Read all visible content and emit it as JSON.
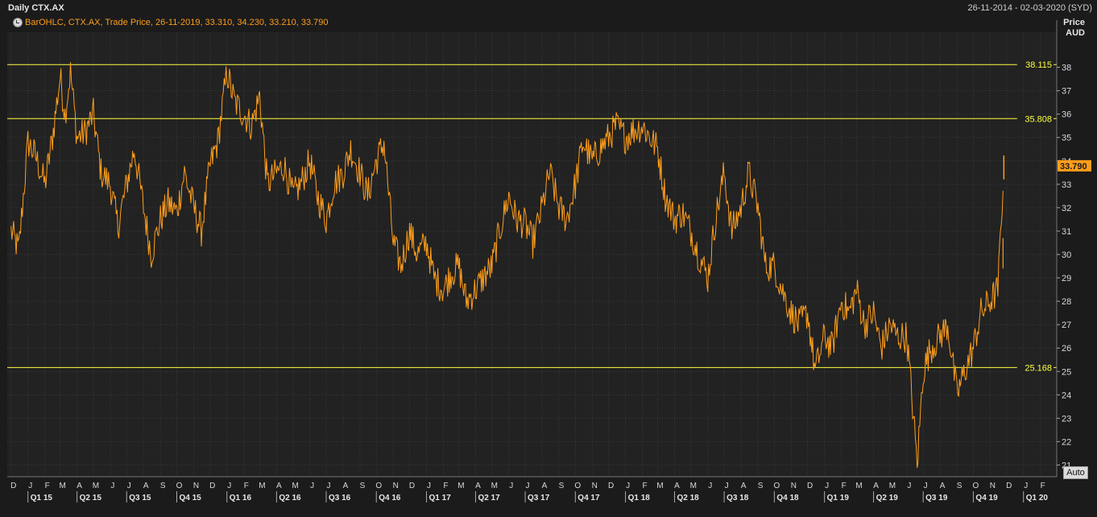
{
  "header": {
    "title": "Daily CTX.AX",
    "date_range": "26-11-2014 - 02-03-2020 (SYD)",
    "legend": "BarOHLC, CTX.AX, Trade Price, 26-11-2019, 33.310, 34.230, 33.210, 33.790",
    "price_label": "Price",
    "currency_label": "AUD",
    "auto_button": "Auto"
  },
  "colors": {
    "background": "#1b1b1b",
    "series": "#ff9e1b",
    "reference_lines": "#ffff40",
    "grid": "#3a3a3a"
  },
  "chart_data": {
    "type": "line",
    "title": "Daily CTX.AX",
    "ylabel": "Price AUD",
    "ylim": [
      20.5,
      39.5
    ],
    "y_ticks": [
      "21",
      "22",
      "23",
      "24",
      "25",
      "26",
      "27",
      "28",
      "29",
      "30",
      "31",
      "32",
      "33",
      "34",
      "35",
      "36",
      "37",
      "38"
    ],
    "month_ticks": [
      "D",
      "J",
      "F",
      "M",
      "A",
      "M",
      "J",
      "J",
      "A",
      "S",
      "O",
      "N",
      "D",
      "J",
      "F",
      "M",
      "A",
      "M",
      "J",
      "J",
      "A",
      "S",
      "O",
      "N",
      "D",
      "J",
      "F",
      "M",
      "A",
      "M",
      "J",
      "J",
      "A",
      "S",
      "O",
      "N",
      "D",
      "J",
      "F",
      "M",
      "A",
      "M",
      "J",
      "J",
      "A",
      "S",
      "O",
      "N",
      "D",
      "J",
      "F",
      "M",
      "A",
      "M",
      "J",
      "J",
      "A",
      "S",
      "O",
      "N",
      "D",
      "J",
      "F"
    ],
    "quarter_ticks": [
      "Q1 15",
      "Q2 15",
      "Q3 15",
      "Q4 15",
      "Q1 16",
      "Q2 16",
      "Q3 16",
      "Q4 16",
      "Q1 17",
      "Q2 17",
      "Q3 17",
      "Q4 17",
      "Q1 18",
      "Q2 18",
      "Q3 18",
      "Q4 18",
      "Q1 19",
      "Q2 19",
      "Q3 19",
      "Q4 19",
      "Q1 20"
    ],
    "reference_lines": [
      {
        "value": 38.115,
        "label": "38.115"
      },
      {
        "value": 35.808,
        "label": "35.808"
      },
      {
        "value": 25.168,
        "label": "25.168"
      }
    ],
    "last_price": {
      "value": 33.79,
      "label": "33.790"
    },
    "series": [
      {
        "x": [
          "2014-12-01",
          "2014-12-15",
          "2015-01-01",
          "2015-01-15",
          "2015-02-01",
          "2015-02-15",
          "2015-03-01",
          "2015-03-10",
          "2015-03-20",
          "2015-04-01",
          "2015-04-15",
          "2015-05-01",
          "2015-05-15",
          "2015-06-01",
          "2015-06-15",
          "2015-07-01",
          "2015-07-15",
          "2015-08-01",
          "2015-08-15",
          "2015-09-01",
          "2015-09-15",
          "2015-10-01",
          "2015-10-15",
          "2015-11-01",
          "2015-11-15",
          "2015-12-01",
          "2015-12-15",
          "2016-01-01",
          "2016-01-15",
          "2016-02-01",
          "2016-02-15",
          "2016-03-01",
          "2016-03-15",
          "2016-04-01",
          "2016-04-15",
          "2016-05-01",
          "2016-05-15",
          "2016-06-01",
          "2016-06-15",
          "2016-07-01",
          "2016-07-15",
          "2016-08-01",
          "2016-08-15",
          "2016-09-01",
          "2016-09-15",
          "2016-10-01",
          "2016-10-15",
          "2016-11-01",
          "2016-11-15",
          "2016-12-01",
          "2016-12-15",
          "2017-01-01",
          "2017-01-15",
          "2017-02-01",
          "2017-02-15",
          "2017-03-01",
          "2017-03-15",
          "2017-04-01",
          "2017-04-15",
          "2017-05-01",
          "2017-05-15",
          "2017-06-01",
          "2017-06-15",
          "2017-07-01",
          "2017-07-15",
          "2017-08-01",
          "2017-08-15",
          "2017-09-01",
          "2017-09-15",
          "2017-10-01",
          "2017-10-15",
          "2017-11-01",
          "2017-11-15",
          "2017-12-01",
          "2017-12-15",
          "2018-01-01",
          "2018-01-15",
          "2018-02-01",
          "2018-02-15",
          "2018-03-01",
          "2018-03-15",
          "2018-04-01",
          "2018-04-15",
          "2018-05-01",
          "2018-05-15",
          "2018-06-01",
          "2018-06-15",
          "2018-07-01",
          "2018-07-15",
          "2018-08-01",
          "2018-08-15",
          "2018-09-01",
          "2018-09-15",
          "2018-10-01",
          "2018-10-15",
          "2018-11-01",
          "2018-11-15",
          "2018-12-01",
          "2018-12-15",
          "2019-01-01",
          "2019-01-15",
          "2019-02-01",
          "2019-02-15",
          "2019-03-01",
          "2019-03-15",
          "2019-04-01",
          "2019-04-15",
          "2019-05-01",
          "2019-05-15",
          "2019-06-01",
          "2019-06-10",
          "2019-06-20",
          "2019-07-01",
          "2019-07-15",
          "2019-08-01",
          "2019-08-15",
          "2019-09-01",
          "2019-09-15",
          "2019-10-01",
          "2019-10-15",
          "2019-11-01",
          "2019-11-15",
          "2019-11-26"
        ],
        "values": [
          31.0,
          30.2,
          34.8,
          34.2,
          33.0,
          35.0,
          37.6,
          36.0,
          37.8,
          35.0,
          35.2,
          36.0,
          33.5,
          33.0,
          31.2,
          33.0,
          34.5,
          32.0,
          30.0,
          31.5,
          32.2,
          31.8,
          33.5,
          32.0,
          31.0,
          33.8,
          34.8,
          37.8,
          36.5,
          36.0,
          35.5,
          36.8,
          33.0,
          33.5,
          33.8,
          32.5,
          33.0,
          34.0,
          32.5,
          31.5,
          33.0,
          33.5,
          34.5,
          33.5,
          32.5,
          34.0,
          34.8,
          30.5,
          29.5,
          31.0,
          30.0,
          30.5,
          29.0,
          28.5,
          29.2,
          29.5,
          28.0,
          28.5,
          29.0,
          29.5,
          31.0,
          32.5,
          31.5,
          31.3,
          30.5,
          32.0,
          33.5,
          32.0,
          31.5,
          33.0,
          34.8,
          34.0,
          34.5,
          35.0,
          35.5,
          35.0,
          35.3,
          35.5,
          35.0,
          34.5,
          32.5,
          31.5,
          31.8,
          31.0,
          30.0,
          29.0,
          31.5,
          33.5,
          31.0,
          32.0,
          33.5,
          32.0,
          29.5,
          29.5,
          28.5,
          27.5,
          27.0,
          27.5,
          25.0,
          26.5,
          26.0,
          28.0,
          27.5,
          28.5,
          27.0,
          27.5,
          26.0,
          27.0,
          26.5,
          26.5,
          24.0,
          21.0,
          25.0,
          26.0,
          26.5,
          27.0,
          24.0,
          25.0,
          26.0,
          27.5,
          28.0,
          28.5,
          33.79
        ]
      }
    ]
  }
}
